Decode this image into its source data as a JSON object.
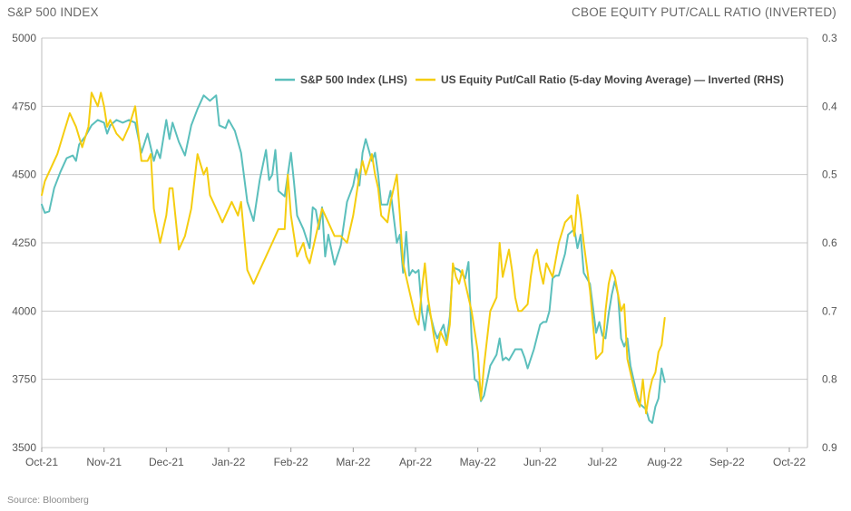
{
  "chart_data": {
    "type": "line",
    "left_axis_title": "S&P 500 INDEX",
    "right_axis_title": "CBOE EQUITY PUT/CALL RATIO (INVERTED)",
    "source": "Source: Bloomberg",
    "x_ticks": [
      "Oct-21",
      "Nov-21",
      "Dec-21",
      "Jan-22",
      "Feb-22",
      "Mar-22",
      "Apr-22",
      "May-22",
      "Jun-22",
      "Jul-22",
      "Aug-22",
      "Sep-22",
      "Oct-22"
    ],
    "y_left": {
      "ticks": [
        "5000",
        "4750",
        "4500",
        "4250",
        "4000",
        "3750",
        "3500"
      ],
      "lim": [
        3500,
        5000
      ]
    },
    "y_right": {
      "ticks": [
        "0.3",
        "0.4",
        "0.5",
        "0.6",
        "0.7",
        "0.8",
        "0.9"
      ],
      "lim": [
        0.3,
        0.9
      ],
      "inverted": true
    },
    "grid": "horizontal",
    "legend_position": "top-right",
    "series": [
      {
        "name": "S&P 500 Index (LHS)",
        "axis": "left",
        "color": "#5bbfbc",
        "points": [
          [
            0,
            4390
          ],
          [
            0.05,
            4360
          ],
          [
            0.12,
            4365
          ],
          [
            0.2,
            4450
          ],
          [
            0.3,
            4510
          ],
          [
            0.4,
            4560
          ],
          [
            0.5,
            4570
          ],
          [
            0.55,
            4550
          ],
          [
            0.6,
            4610
          ],
          [
            0.7,
            4640
          ],
          [
            0.8,
            4680
          ],
          [
            0.9,
            4700
          ],
          [
            1.0,
            4690
          ],
          [
            1.05,
            4650
          ],
          [
            1.1,
            4680
          ],
          [
            1.2,
            4700
          ],
          [
            1.3,
            4690
          ],
          [
            1.4,
            4700
          ],
          [
            1.5,
            4690
          ],
          [
            1.6,
            4580
          ],
          [
            1.7,
            4650
          ],
          [
            1.8,
            4550
          ],
          [
            1.85,
            4590
          ],
          [
            1.9,
            4560
          ],
          [
            2.0,
            4700
          ],
          [
            2.05,
            4630
          ],
          [
            2.1,
            4690
          ],
          [
            2.2,
            4620
          ],
          [
            2.3,
            4570
          ],
          [
            2.4,
            4680
          ],
          [
            2.5,
            4740
          ],
          [
            2.6,
            4790
          ],
          [
            2.7,
            4770
          ],
          [
            2.8,
            4790
          ],
          [
            2.85,
            4680
          ],
          [
            2.95,
            4670
          ],
          [
            3.0,
            4700
          ],
          [
            3.1,
            4660
          ],
          [
            3.2,
            4580
          ],
          [
            3.3,
            4400
          ],
          [
            3.4,
            4330
          ],
          [
            3.5,
            4480
          ],
          [
            3.6,
            4590
          ],
          [
            3.65,
            4480
          ],
          [
            3.7,
            4500
          ],
          [
            3.75,
            4590
          ],
          [
            3.8,
            4440
          ],
          [
            3.9,
            4420
          ],
          [
            4.0,
            4580
          ],
          [
            4.05,
            4470
          ],
          [
            4.1,
            4350
          ],
          [
            4.2,
            4300
          ],
          [
            4.3,
            4230
          ],
          [
            4.35,
            4380
          ],
          [
            4.4,
            4370
          ],
          [
            4.45,
            4300
          ],
          [
            4.5,
            4380
          ],
          [
            4.55,
            4200
          ],
          [
            4.6,
            4280
          ],
          [
            4.7,
            4170
          ],
          [
            4.8,
            4240
          ],
          [
            4.9,
            4400
          ],
          [
            5.0,
            4460
          ],
          [
            5.05,
            4520
          ],
          [
            5.1,
            4460
          ],
          [
            5.15,
            4580
          ],
          [
            5.2,
            4630
          ],
          [
            5.3,
            4550
          ],
          [
            5.35,
            4580
          ],
          [
            5.4,
            4500
          ],
          [
            5.45,
            4390
          ],
          [
            5.55,
            4390
          ],
          [
            5.6,
            4440
          ],
          [
            5.7,
            4250
          ],
          [
            5.75,
            4280
          ],
          [
            5.8,
            4140
          ],
          [
            5.85,
            4290
          ],
          [
            5.9,
            4130
          ],
          [
            5.95,
            4150
          ],
          [
            6.0,
            4140
          ],
          [
            6.05,
            4150
          ],
          [
            6.1,
            4000
          ],
          [
            6.15,
            3930
          ],
          [
            6.2,
            4020
          ],
          [
            6.3,
            3930
          ],
          [
            6.35,
            3900
          ],
          [
            6.45,
            3950
          ],
          [
            6.5,
            3890
          ],
          [
            6.55,
            3980
          ],
          [
            6.6,
            4160
          ],
          [
            6.7,
            4150
          ],
          [
            6.8,
            4120
          ],
          [
            6.85,
            4180
          ],
          [
            6.9,
            3900
          ],
          [
            6.95,
            3750
          ],
          [
            7.0,
            3740
          ],
          [
            7.05,
            3670
          ],
          [
            7.1,
            3690
          ],
          [
            7.2,
            3800
          ],
          [
            7.3,
            3840
          ],
          [
            7.35,
            3900
          ],
          [
            7.4,
            3820
          ],
          [
            7.45,
            3830
          ],
          [
            7.5,
            3820
          ],
          [
            7.6,
            3860
          ],
          [
            7.7,
            3860
          ],
          [
            7.75,
            3830
          ],
          [
            7.8,
            3790
          ],
          [
            7.9,
            3860
          ],
          [
            8.0,
            3950
          ],
          [
            8.05,
            3960
          ],
          [
            8.1,
            3960
          ],
          [
            8.15,
            4000
          ],
          [
            8.2,
            4120
          ],
          [
            8.25,
            4130
          ],
          [
            8.3,
            4130
          ],
          [
            8.4,
            4210
          ],
          [
            8.45,
            4280
          ],
          [
            8.5,
            4290
          ],
          [
            8.55,
            4300
          ],
          [
            8.6,
            4230
          ],
          [
            8.65,
            4280
          ],
          [
            8.7,
            4140
          ],
          [
            8.8,
            4100
          ],
          [
            8.9,
            3920
          ],
          [
            8.95,
            3960
          ],
          [
            9.0,
            3910
          ],
          [
            9.05,
            3900
          ],
          [
            9.1,
            3990
          ],
          [
            9.15,
            4060
          ],
          [
            9.2,
            4110
          ],
          [
            9.25,
            4060
          ],
          [
            9.3,
            3900
          ],
          [
            9.35,
            3870
          ],
          [
            9.4,
            3900
          ],
          [
            9.45,
            3800
          ],
          [
            9.5,
            3750
          ],
          [
            9.55,
            3700
          ],
          [
            9.6,
            3660
          ],
          [
            9.65,
            3650
          ],
          [
            9.7,
            3640
          ],
          [
            9.75,
            3600
          ],
          [
            9.8,
            3590
          ],
          [
            9.85,
            3650
          ],
          [
            9.9,
            3680
          ],
          [
            9.95,
            3790
          ],
          [
            10.0,
            3740
          ]
        ]
      },
      {
        "name": "US Equity Put/Call Ratio (5-day Moving Average) — Inverted (RHS)",
        "axis": "right",
        "color": "#f5cd10",
        "points": [
          [
            0,
            0.53
          ],
          [
            0.05,
            0.51
          ],
          [
            0.15,
            0.49
          ],
          [
            0.25,
            0.47
          ],
          [
            0.35,
            0.44
          ],
          [
            0.45,
            0.41
          ],
          [
            0.55,
            0.43
          ],
          [
            0.65,
            0.46
          ],
          [
            0.75,
            0.43
          ],
          [
            0.8,
            0.38
          ],
          [
            0.9,
            0.4
          ],
          [
            0.95,
            0.38
          ],
          [
            1.0,
            0.4
          ],
          [
            1.05,
            0.43
          ],
          [
            1.1,
            0.42
          ],
          [
            1.2,
            0.44
          ],
          [
            1.3,
            0.45
          ],
          [
            1.4,
            0.43
          ],
          [
            1.5,
            0.4
          ],
          [
            1.6,
            0.48
          ],
          [
            1.7,
            0.48
          ],
          [
            1.75,
            0.47
          ],
          [
            1.8,
            0.55
          ],
          [
            1.9,
            0.6
          ],
          [
            2.0,
            0.56
          ],
          [
            2.05,
            0.52
          ],
          [
            2.1,
            0.52
          ],
          [
            2.2,
            0.61
          ],
          [
            2.3,
            0.59
          ],
          [
            2.4,
            0.55
          ],
          [
            2.5,
            0.47
          ],
          [
            2.6,
            0.5
          ],
          [
            2.65,
            0.49
          ],
          [
            2.7,
            0.53
          ],
          [
            2.8,
            0.55
          ],
          [
            2.9,
            0.57
          ],
          [
            3.0,
            0.55
          ],
          [
            3.05,
            0.54
          ],
          [
            3.1,
            0.55
          ],
          [
            3.15,
            0.56
          ],
          [
            3.2,
            0.54
          ],
          [
            3.3,
            0.64
          ],
          [
            3.4,
            0.66
          ],
          [
            3.5,
            0.64
          ],
          [
            3.6,
            0.62
          ],
          [
            3.7,
            0.6
          ],
          [
            3.8,
            0.58
          ],
          [
            3.9,
            0.58
          ],
          [
            3.95,
            0.5
          ],
          [
            4.0,
            0.56
          ],
          [
            4.05,
            0.59
          ],
          [
            4.1,
            0.62
          ],
          [
            4.2,
            0.6
          ],
          [
            4.25,
            0.62
          ],
          [
            4.3,
            0.63
          ],
          [
            4.4,
            0.59
          ],
          [
            4.5,
            0.55
          ],
          [
            4.6,
            0.57
          ],
          [
            4.7,
            0.59
          ],
          [
            4.8,
            0.59
          ],
          [
            4.9,
            0.6
          ],
          [
            5.0,
            0.56
          ],
          [
            5.05,
            0.53
          ],
          [
            5.1,
            0.5
          ],
          [
            5.15,
            0.48
          ],
          [
            5.2,
            0.5
          ],
          [
            5.3,
            0.47
          ],
          [
            5.35,
            0.5
          ],
          [
            5.4,
            0.52
          ],
          [
            5.45,
            0.56
          ],
          [
            5.55,
            0.57
          ],
          [
            5.6,
            0.54
          ],
          [
            5.7,
            0.5
          ],
          [
            5.75,
            0.56
          ],
          [
            5.8,
            0.63
          ],
          [
            5.9,
            0.67
          ],
          [
            6.0,
            0.71
          ],
          [
            6.05,
            0.72
          ],
          [
            6.1,
            0.67
          ],
          [
            6.15,
            0.63
          ],
          [
            6.2,
            0.68
          ],
          [
            6.3,
            0.74
          ],
          [
            6.35,
            0.76
          ],
          [
            6.4,
            0.73
          ],
          [
            6.5,
            0.75
          ],
          [
            6.55,
            0.72
          ],
          [
            6.6,
            0.63
          ],
          [
            6.65,
            0.65
          ],
          [
            6.7,
            0.66
          ],
          [
            6.75,
            0.64
          ],
          [
            6.8,
            0.66
          ],
          [
            6.9,
            0.7
          ],
          [
            7.0,
            0.76
          ],
          [
            7.05,
            0.83
          ],
          [
            7.1,
            0.78
          ],
          [
            7.2,
            0.7
          ],
          [
            7.3,
            0.68
          ],
          [
            7.35,
            0.6
          ],
          [
            7.4,
            0.65
          ],
          [
            7.5,
            0.61
          ],
          [
            7.55,
            0.64
          ],
          [
            7.6,
            0.68
          ],
          [
            7.65,
            0.7
          ],
          [
            7.7,
            0.7
          ],
          [
            7.8,
            0.69
          ],
          [
            7.85,
            0.65
          ],
          [
            7.9,
            0.62
          ],
          [
            7.95,
            0.61
          ],
          [
            8.0,
            0.64
          ],
          [
            8.05,
            0.66
          ],
          [
            8.1,
            0.63
          ],
          [
            8.15,
            0.64
          ],
          [
            8.2,
            0.65
          ],
          [
            8.3,
            0.6
          ],
          [
            8.4,
            0.57
          ],
          [
            8.5,
            0.56
          ],
          [
            8.55,
            0.59
          ],
          [
            8.6,
            0.53
          ],
          [
            8.65,
            0.56
          ],
          [
            8.7,
            0.6
          ],
          [
            8.8,
            0.67
          ],
          [
            8.9,
            0.77
          ],
          [
            9.0,
            0.76
          ],
          [
            9.05,
            0.7
          ],
          [
            9.1,
            0.66
          ],
          [
            9.15,
            0.64
          ],
          [
            9.2,
            0.65
          ],
          [
            9.3,
            0.7
          ],
          [
            9.35,
            0.69
          ],
          [
            9.4,
            0.77
          ],
          [
            9.5,
            0.81
          ],
          [
            9.55,
            0.83
          ],
          [
            9.6,
            0.84
          ],
          [
            9.65,
            0.8
          ],
          [
            9.7,
            0.85
          ],
          [
            9.75,
            0.82
          ],
          [
            9.8,
            0.8
          ],
          [
            9.85,
            0.79
          ],
          [
            9.9,
            0.76
          ],
          [
            9.95,
            0.75
          ],
          [
            10.0,
            0.71
          ]
        ]
      }
    ]
  }
}
